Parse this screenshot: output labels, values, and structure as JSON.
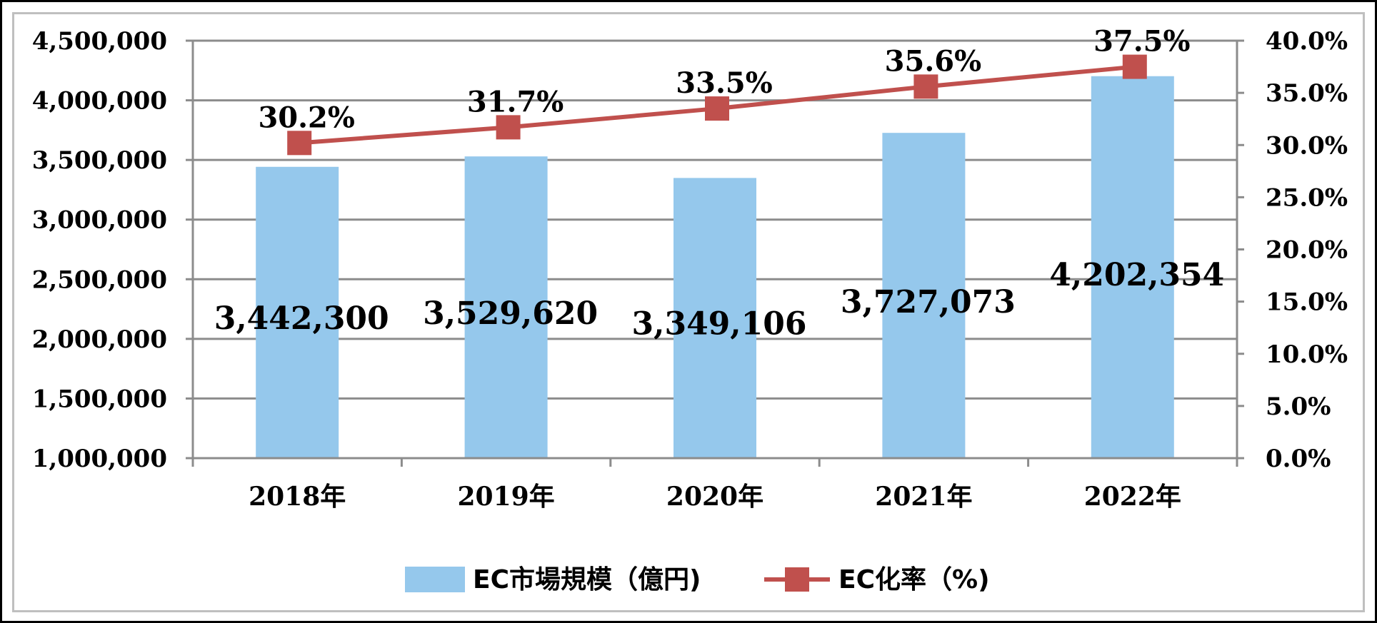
{
  "chart_data": {
    "type": "bar",
    "categories": [
      "2018年",
      "2019年",
      "2020年",
      "2021年",
      "2022年"
    ],
    "series": [
      {
        "name": "EC市場規模（億円)",
        "type": "bar",
        "axis": "left",
        "color": "#95c8ec",
        "values": [
          3442300,
          3529620,
          3349106,
          3727073,
          4202354
        ],
        "labels": [
          "3,442,300",
          "3,529,620",
          "3,349,106",
          "3,727,073",
          "4,202,354"
        ]
      },
      {
        "name": "EC化率（%)",
        "type": "line",
        "axis": "right",
        "color": "#c0504d",
        "marker": "square",
        "values": [
          30.2,
          31.7,
          33.5,
          35.6,
          37.5
        ],
        "labels": [
          "30.2%",
          "31.7%",
          "33.5%",
          "35.6%",
          "37.5%"
        ]
      }
    ],
    "left_axis": {
      "min": 1000000,
      "max": 4500000,
      "step": 500000,
      "tick_labels": [
        "1,000,000",
        "1,500,000",
        "2,000,000",
        "2,500,000",
        "3,000,000",
        "3,500,000",
        "4,000,000",
        "4,500,000"
      ]
    },
    "right_axis": {
      "min": 0,
      "max": 40,
      "step": 5,
      "tick_labels": [
        "0.0%",
        "5.0%",
        "10.0%",
        "15.0%",
        "20.0%",
        "25.0%",
        "30.0%",
        "35.0%",
        "40.0%"
      ]
    },
    "grid": true,
    "legend": "bottom",
    "title": "",
    "xlabel": "",
    "ylabel": ""
  }
}
